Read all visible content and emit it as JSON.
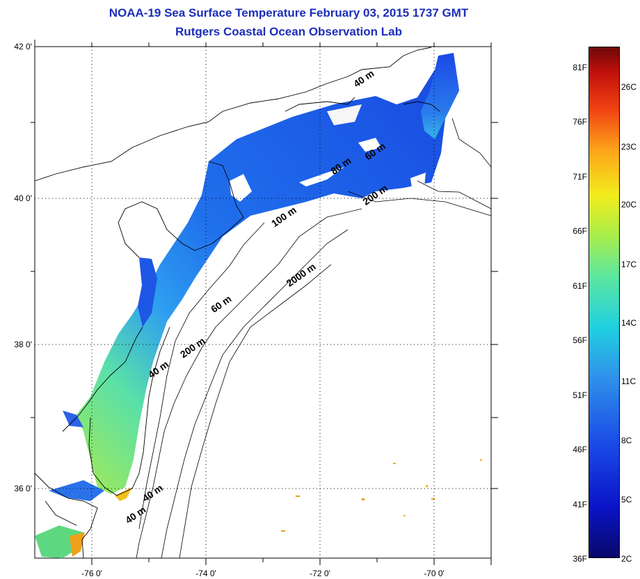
{
  "header": {
    "title": "NOAA-19 Sea Surface Temperature February 03, 2015 1737 GMT",
    "subtitle": "Rutgers Coastal Ocean Observation Lab"
  },
  "axes": {
    "lat_labels": [
      {
        "value": 42,
        "label": "42 0'"
      },
      {
        "value": 40,
        "label": "40 0'"
      },
      {
        "value": 38,
        "label": "38 0'"
      },
      {
        "value": 36,
        "label": "36 0'"
      }
    ],
    "lon_labels": [
      {
        "value": -76,
        "label": "-76 0'"
      },
      {
        "value": -74,
        "label": "-74 0'"
      },
      {
        "value": -72,
        "label": "-72 0'"
      },
      {
        "value": -70,
        "label": "-70 0'"
      }
    ],
    "lon_range": [
      -77,
      -69
    ],
    "lat_range": [
      35,
      42
    ],
    "grid": "dotted"
  },
  "contour_labels": [
    {
      "label": "40 m",
      "lon": -71.2,
      "lat": 41.6
    },
    {
      "label": "60 m",
      "lon": -71.0,
      "lat": 40.6
    },
    {
      "label": "80 m",
      "lon": -71.6,
      "lat": 40.4
    },
    {
      "label": "200 m",
      "lon": -71.0,
      "lat": 40.0
    },
    {
      "label": "100 m",
      "lon": -72.6,
      "lat": 39.7
    },
    {
      "label": "2000 m",
      "lon": -72.3,
      "lat": 38.9
    },
    {
      "label": "60 m",
      "lon": -73.7,
      "lat": 38.5
    },
    {
      "label": "200 m",
      "lon": -74.2,
      "lat": 37.9
    },
    {
      "label": "40 m",
      "lon": -74.8,
      "lat": 37.6
    },
    {
      "label": "40 m",
      "lon": -74.9,
      "lat": 35.9
    },
    {
      "label": "40 m",
      "lon": -75.2,
      "lat": 35.6
    }
  ],
  "colorbar": {
    "fahrenheit_labels": [
      "81F",
      "76F",
      "71F",
      "66F",
      "61F",
      "56F",
      "51F",
      "46F",
      "41F",
      "36F"
    ],
    "celsius_labels": [
      "26C",
      "23C",
      "20C",
      "17C",
      "14C",
      "11C",
      "8C",
      "5C",
      "2C"
    ],
    "colors": [
      "#08086a",
      "#1a4ae6",
      "#20d0e0",
      "#a8ee4c",
      "#f2ec1c",
      "#f04012",
      "#6e0808"
    ]
  }
}
